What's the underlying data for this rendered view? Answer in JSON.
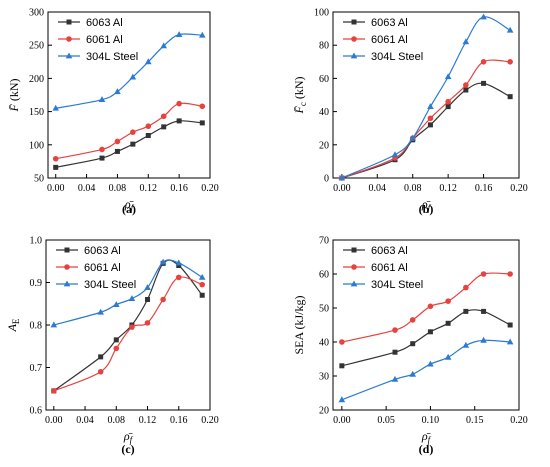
{
  "chart_data": [
    {
      "panel_label": "(a)",
      "type": "line",
      "xlabel": "ρ̄f",
      "ylabel": "F̄ (kN)",
      "xlim": [
        -0.01,
        0.2
      ],
      "ylim": [
        50,
        300
      ],
      "x_ticks": [
        "0.00",
        "0.04",
        "0.08",
        "0.12",
        "0.16",
        "0.20"
      ],
      "y_ticks": [
        "50",
        "100",
        "150",
        "200",
        "250",
        "300"
      ],
      "legend": "top-left",
      "series": [
        {
          "name": "6063 Al",
          "color": "#333333",
          "marker": "square",
          "points": [
            [
              0,
              66
            ],
            [
              0.06,
              80
            ],
            [
              0.08,
              90
            ],
            [
              0.1,
              101
            ],
            [
              0.12,
              114
            ],
            [
              0.14,
              127
            ],
            [
              0.16,
              136
            ],
            [
              0.19,
              133
            ]
          ]
        },
        {
          "name": "6061 Al",
          "color": "#e8423f",
          "marker": "circle",
          "points": [
            [
              0,
              79
            ],
            [
              0.06,
              93
            ],
            [
              0.08,
              105
            ],
            [
              0.1,
              119
            ],
            [
              0.12,
              128
            ],
            [
              0.14,
              143
            ],
            [
              0.16,
              162
            ],
            [
              0.19,
              158
            ]
          ]
        },
        {
          "name": "304L Steel",
          "color": "#2a7bd1",
          "marker": "triangle",
          "points": [
            [
              0,
              155
            ],
            [
              0.06,
              168
            ],
            [
              0.08,
              180
            ],
            [
              0.1,
              202
            ],
            [
              0.12,
              225
            ],
            [
              0.14,
              249
            ],
            [
              0.16,
              266
            ],
            [
              0.19,
              265
            ]
          ]
        }
      ]
    },
    {
      "panel_label": "(b)",
      "type": "line",
      "xlabel": "ρ̄f",
      "ylabel": "F̄c (kN)",
      "xlim": [
        -0.01,
        0.2
      ],
      "ylim": [
        0,
        100
      ],
      "x_ticks": [
        "0.00",
        "0.04",
        "0.08",
        "0.12",
        "0.16",
        "0.20"
      ],
      "y_ticks": [
        "0",
        "20",
        "40",
        "60",
        "80",
        "100"
      ],
      "legend": "top-left",
      "series": [
        {
          "name": "6063 Al",
          "color": "#333333",
          "marker": "square",
          "points": [
            [
              0,
              0
            ],
            [
              0.06,
              11
            ],
            [
              0.08,
              23
            ],
            [
              0.1,
              32
            ],
            [
              0.12,
              43
            ],
            [
              0.14,
              53
            ],
            [
              0.16,
              57
            ],
            [
              0.19,
              49
            ]
          ]
        },
        {
          "name": "6061 Al",
          "color": "#e8423f",
          "marker": "circle",
          "points": [
            [
              0,
              0
            ],
            [
              0.06,
              12
            ],
            [
              0.08,
              24
            ],
            [
              0.1,
              36
            ],
            [
              0.12,
              46
            ],
            [
              0.14,
              56
            ],
            [
              0.16,
              70
            ],
            [
              0.19,
              70
            ]
          ]
        },
        {
          "name": "304L Steel",
          "color": "#2a7bd1",
          "marker": "triangle",
          "points": [
            [
              0,
              0
            ],
            [
              0.06,
              14
            ],
            [
              0.08,
              24
            ],
            [
              0.1,
              43
            ],
            [
              0.12,
              61
            ],
            [
              0.14,
              82
            ],
            [
              0.16,
              97
            ],
            [
              0.19,
              89
            ]
          ]
        }
      ]
    },
    {
      "panel_label": "(c)",
      "type": "line",
      "xlabel": "ρ̄f",
      "ylabel": "AE",
      "xlim": [
        -0.01,
        0.2
      ],
      "ylim": [
        0.6,
        1.0
      ],
      "x_ticks": [
        "0.00",
        "0.04",
        "0.08",
        "0.12",
        "0.16",
        "0.20"
      ],
      "y_ticks": [
        "0.6",
        "0.7",
        "0.8",
        "0.9",
        "1.0"
      ],
      "legend": "top-left",
      "series": [
        {
          "name": "6063 Al",
          "color": "#333333",
          "marker": "square",
          "points": [
            [
              0,
              0.645
            ],
            [
              0.06,
              0.725
            ],
            [
              0.08,
              0.765
            ],
            [
              0.1,
              0.8
            ],
            [
              0.12,
              0.86
            ],
            [
              0.14,
              0.945
            ],
            [
              0.16,
              0.94
            ],
            [
              0.19,
              0.87
            ]
          ]
        },
        {
          "name": "6061 Al",
          "color": "#e8423f",
          "marker": "circle",
          "points": [
            [
              0,
              0.645
            ],
            [
              0.06,
              0.69
            ],
            [
              0.08,
              0.745
            ],
            [
              0.1,
              0.795
            ],
            [
              0.12,
              0.805
            ],
            [
              0.14,
              0.86
            ],
            [
              0.16,
              0.912
            ],
            [
              0.19,
              0.895
            ]
          ]
        },
        {
          "name": "304L Steel",
          "color": "#2a7bd1",
          "marker": "triangle",
          "points": [
            [
              0,
              0.8
            ],
            [
              0.06,
              0.83
            ],
            [
              0.08,
              0.848
            ],
            [
              0.1,
              0.862
            ],
            [
              0.12,
              0.888
            ],
            [
              0.14,
              0.948
            ],
            [
              0.16,
              0.946
            ],
            [
              0.19,
              0.912
            ]
          ]
        }
      ]
    },
    {
      "panel_label": "(d)",
      "type": "line",
      "xlabel": "ρ̄f",
      "ylabel": "SEA (kJ/kg)",
      "xlim": [
        -0.01,
        0.2
      ],
      "ylim": [
        20,
        70
      ],
      "x_ticks": [
        "0.00",
        "0.05",
        "0.10",
        "0.15",
        "0.20"
      ],
      "y_ticks": [
        "20",
        "30",
        "40",
        "50",
        "60",
        "70"
      ],
      "legend": "top-left",
      "series": [
        {
          "name": "6063 Al",
          "color": "#333333",
          "marker": "square",
          "points": [
            [
              0,
              33
            ],
            [
              0.06,
              37
            ],
            [
              0.08,
              39.5
            ],
            [
              0.1,
              43
            ],
            [
              0.12,
              45.5
            ],
            [
              0.14,
              49
            ],
            [
              0.16,
              49
            ],
            [
              0.19,
              45
            ]
          ]
        },
        {
          "name": "6061 Al",
          "color": "#e8423f",
          "marker": "circle",
          "points": [
            [
              0,
              40
            ],
            [
              0.06,
              43.5
            ],
            [
              0.08,
              46.5
            ],
            [
              0.1,
              50.5
            ],
            [
              0.12,
              52
            ],
            [
              0.14,
              56
            ],
            [
              0.16,
              60
            ],
            [
              0.19,
              60
            ]
          ]
        },
        {
          "name": "304L Steel",
          "color": "#2a7bd1",
          "marker": "triangle",
          "points": [
            [
              0,
              23
            ],
            [
              0.06,
              29
            ],
            [
              0.08,
              30.5
            ],
            [
              0.1,
              33.5
            ],
            [
              0.12,
              35.5
            ],
            [
              0.14,
              39
            ],
            [
              0.16,
              40.5
            ],
            [
              0.19,
              40
            ]
          ]
        }
      ]
    }
  ]
}
